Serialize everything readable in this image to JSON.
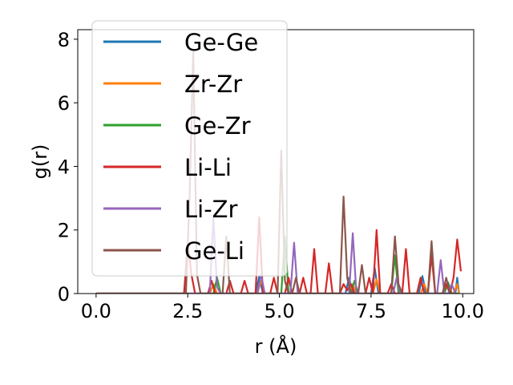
{
  "chart_data": {
    "type": "line",
    "title": "",
    "xlabel": "r (Å)",
    "ylabel": "g(r)",
    "xlim": [
      -0.5,
      10.3
    ],
    "ylim": [
      0,
      8.3
    ],
    "xticks": [
      "0.0",
      "2.5",
      "5.0",
      "7.5",
      "10.0"
    ],
    "yticks": [
      "0",
      "2",
      "4",
      "6",
      "8"
    ],
    "grid": false,
    "legend_position": "upper-left",
    "series": [
      {
        "name": "Ge-Ge",
        "color": "#1f77b4",
        "points": [
          [
            0,
            0
          ],
          [
            2.45,
            0
          ],
          [
            2.55,
            0
          ],
          [
            3.1,
            0
          ],
          [
            3.2,
            0
          ],
          [
            4.35,
            0
          ],
          [
            4.45,
            0.55
          ],
          [
            4.55,
            0
          ],
          [
            5.0,
            0
          ],
          [
            5.1,
            0
          ],
          [
            6.8,
            0
          ],
          [
            6.9,
            0.5
          ],
          [
            7.0,
            0
          ],
          [
            7.5,
            0
          ],
          [
            7.6,
            0.8
          ],
          [
            7.7,
            0
          ],
          [
            8.1,
            0
          ],
          [
            8.2,
            0
          ],
          [
            8.8,
            0
          ],
          [
            8.9,
            0.55
          ],
          [
            9.0,
            0
          ],
          [
            9.8,
            0
          ],
          [
            9.85,
            0.5
          ],
          [
            9.9,
            0
          ]
        ]
      },
      {
        "name": "Zr-Zr",
        "color": "#ff7f0e",
        "points": [
          [
            0,
            0
          ],
          [
            3.1,
            0
          ],
          [
            3.2,
            0.3
          ],
          [
            3.3,
            0
          ],
          [
            4.4,
            0
          ],
          [
            4.5,
            0.4
          ],
          [
            4.6,
            0
          ],
          [
            6.9,
            0
          ],
          [
            7.0,
            0.3
          ],
          [
            7.1,
            0
          ],
          [
            7.55,
            0
          ],
          [
            7.65,
            0.45
          ],
          [
            7.75,
            0
          ],
          [
            8.85,
            0
          ],
          [
            8.95,
            0.3
          ],
          [
            9.05,
            0
          ],
          [
            9.75,
            0
          ],
          [
            9.85,
            0.3
          ],
          [
            9.9,
            0
          ]
        ]
      },
      {
        "name": "Ge-Zr",
        "color": "#2ca02c",
        "points": [
          [
            0,
            0
          ],
          [
            3.2,
            0
          ],
          [
            3.3,
            0.5
          ],
          [
            3.4,
            0
          ],
          [
            5.05,
            0
          ],
          [
            5.15,
            1.8
          ],
          [
            5.25,
            0
          ],
          [
            6.95,
            0
          ],
          [
            7.05,
            0.4
          ],
          [
            7.15,
            0
          ],
          [
            8.05,
            0
          ],
          [
            8.15,
            1.2
          ],
          [
            8.25,
            0
          ],
          [
            9.5,
            0
          ],
          [
            9.6,
            0.35
          ],
          [
            9.7,
            0
          ],
          [
            9.9,
            0
          ]
        ]
      },
      {
        "name": "Li-Li",
        "color": "#d62728",
        "points": [
          [
            0,
            0
          ],
          [
            2.4,
            0
          ],
          [
            2.5,
            1.6
          ],
          [
            2.6,
            0.6
          ],
          [
            2.7,
            0
          ],
          [
            3.05,
            0
          ],
          [
            3.15,
            0.4
          ],
          [
            3.25,
            0
          ],
          [
            3.55,
            0
          ],
          [
            3.65,
            0.4
          ],
          [
            3.75,
            0
          ],
          [
            3.95,
            0
          ],
          [
            4.05,
            0.4
          ],
          [
            4.15,
            0
          ],
          [
            4.35,
            0
          ],
          [
            4.45,
            2.4
          ],
          [
            4.55,
            0
          ],
          [
            4.75,
            0
          ],
          [
            4.85,
            0.5
          ],
          [
            4.95,
            0
          ],
          [
            5.15,
            0
          ],
          [
            5.25,
            0.5
          ],
          [
            5.35,
            0
          ],
          [
            5.55,
            0
          ],
          [
            5.65,
            0.5
          ],
          [
            5.75,
            0
          ],
          [
            5.85,
            0
          ],
          [
            5.95,
            1.4
          ],
          [
            6.05,
            0
          ],
          [
            6.25,
            0
          ],
          [
            6.35,
            0.95
          ],
          [
            6.45,
            0
          ],
          [
            6.65,
            0
          ],
          [
            6.75,
            0.3
          ],
          [
            6.85,
            0.1
          ],
          [
            6.95,
            0.3
          ],
          [
            7.05,
            0
          ],
          [
            7.35,
            0
          ],
          [
            7.45,
            0.5
          ],
          [
            7.55,
            0
          ],
          [
            7.65,
            2.0
          ],
          [
            7.75,
            0
          ],
          [
            7.95,
            0
          ],
          [
            8.05,
            0.3
          ],
          [
            8.15,
            0
          ],
          [
            8.35,
            0
          ],
          [
            8.45,
            1.4
          ],
          [
            8.55,
            0
          ],
          [
            8.75,
            0
          ],
          [
            8.85,
            0.5
          ],
          [
            8.95,
            0
          ],
          [
            9.05,
            0
          ],
          [
            9.15,
            1.2
          ],
          [
            9.25,
            0
          ],
          [
            9.45,
            0
          ],
          [
            9.55,
            0.3
          ],
          [
            9.65,
            0
          ],
          [
            9.75,
            0.5
          ],
          [
            9.85,
            1.7
          ],
          [
            9.95,
            0.7
          ]
        ]
      },
      {
        "name": "Li-Zr",
        "color": "#9467bd",
        "points": [
          [
            0,
            0
          ],
          [
            3.1,
            0
          ],
          [
            3.2,
            2.4
          ],
          [
            3.3,
            0.2
          ],
          [
            3.4,
            0
          ],
          [
            4.4,
            0
          ],
          [
            4.5,
            0.6
          ],
          [
            4.6,
            0
          ],
          [
            5.3,
            0
          ],
          [
            5.4,
            1.6
          ],
          [
            5.5,
            0
          ],
          [
            6.9,
            0
          ],
          [
            7.0,
            1.9
          ],
          [
            7.1,
            0
          ],
          [
            8.1,
            0
          ],
          [
            8.2,
            0.5
          ],
          [
            8.3,
            0
          ],
          [
            9.3,
            0
          ],
          [
            9.4,
            1.05
          ],
          [
            9.5,
            0
          ],
          [
            9.6,
            0
          ],
          [
            9.7,
            0.3
          ],
          [
            9.8,
            0
          ]
        ]
      },
      {
        "name": "Ge-Li",
        "color": "#8c564b",
        "points": [
          [
            0,
            0
          ],
          [
            2.45,
            0
          ],
          [
            2.55,
            3.0
          ],
          [
            2.65,
            7.6
          ],
          [
            2.75,
            0.6
          ],
          [
            2.85,
            0
          ],
          [
            3.45,
            0
          ],
          [
            3.55,
            1.8
          ],
          [
            3.65,
            0
          ],
          [
            4.95,
            0
          ],
          [
            5.05,
            4.5
          ],
          [
            5.15,
            0.4
          ],
          [
            5.25,
            0
          ],
          [
            5.35,
            0
          ],
          [
            5.45,
            0.5
          ],
          [
            5.55,
            0
          ],
          [
            6.65,
            0
          ],
          [
            6.75,
            3.05
          ],
          [
            6.85,
            0.5
          ],
          [
            6.95,
            0
          ],
          [
            7.15,
            0
          ],
          [
            7.25,
            0.9
          ],
          [
            7.35,
            0
          ],
          [
            8.05,
            0
          ],
          [
            8.15,
            1.8
          ],
          [
            8.25,
            0.3
          ],
          [
            8.35,
            0
          ],
          [
            9.05,
            0
          ],
          [
            9.15,
            1.65
          ],
          [
            9.25,
            0
          ],
          [
            9.45,
            0
          ],
          [
            9.55,
            0.5
          ],
          [
            9.65,
            0
          ],
          [
            9.85,
            0
          ]
        ]
      }
    ]
  }
}
